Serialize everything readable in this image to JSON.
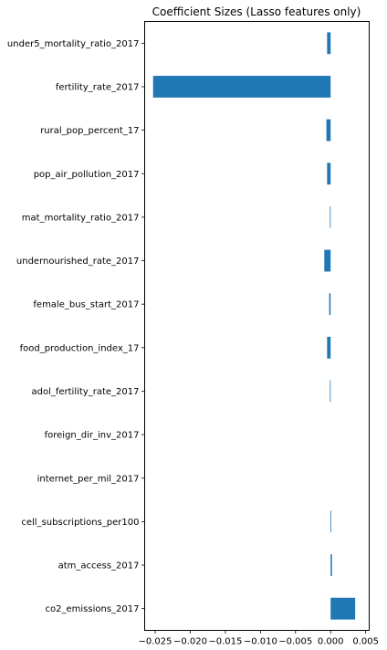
{
  "chart_data": {
    "type": "bar",
    "orientation": "horizontal",
    "title": "Coefficient Sizes (Lasso features only)",
    "xlabel": "",
    "ylabel": "",
    "xlim": [
      -0.0265,
      0.0055
    ],
    "xticks": [
      -0.025,
      -0.02,
      -0.015,
      -0.01,
      -0.005,
      0.0,
      0.005
    ],
    "xtick_labels": [
      "−0.025",
      "−0.020",
      "−0.015",
      "−0.010",
      "−0.005",
      "0.000",
      "0.005"
    ],
    "grid": false,
    "legend": "none",
    "bar_color": "#1f77b4",
    "categories": [
      "under5_mortality_ratio_2017",
      "fertility_rate_2017",
      "rural_pop_percent_17",
      "pop_air_pollution_2017",
      "mat_mortality_ratio_2017",
      "undernourished_rate_2017",
      "female_bus_start_2017",
      "food_production_index_17",
      "adol_fertility_rate_2017",
      "foreign_dir_inv_2017",
      "internet_per_mil_2017",
      "cell_subscriptions_per100",
      "atm_access_2017",
      "co2_emissions_2017"
    ],
    "values": [
      -0.0005,
      -0.0253,
      -0.0006,
      -0.0005,
      -0.0001,
      -0.0009,
      -0.0002,
      -0.0005,
      -0.0001,
      0.0,
      0.0,
      0.0001,
      0.0002,
      0.0035
    ]
  }
}
